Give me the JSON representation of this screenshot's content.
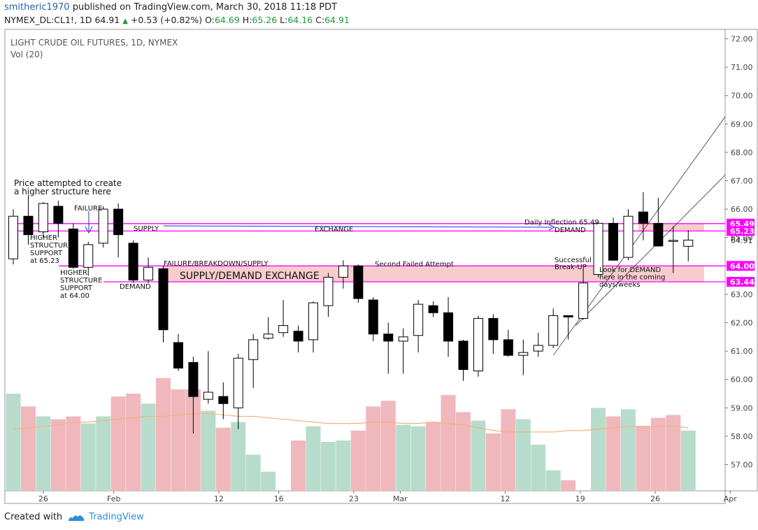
{
  "header": {
    "user": "smitheric1970",
    "published": "published on TradingView.com, March 30, 2018 11:18 PDT",
    "symbol": "NYMEX_DL:CL1!, 1D",
    "last": "64.91",
    "change": "+0.53 (+0.82%)",
    "o_label": "O:",
    "o": "64.69",
    "h_label": "H:",
    "h": "65.26",
    "l_label": "L:",
    "l": "64.16",
    "c_label": "C:",
    "c": "64.91"
  },
  "footer": {
    "created": "Created with",
    "brand": "TradingView"
  },
  "colors": {
    "up_fill": "#ffffff",
    "down_fill": "#000000",
    "vol_up": "#b8dccb",
    "vol_down": "#f0b8bc",
    "magenta": "#ff00ff",
    "zone": "#f6cccc",
    "ma": "#f2b27a",
    "trend": "#333333"
  },
  "chart_data": {
    "type": "candlestick",
    "title": "LIGHT CRUDE OIL FUTURES, 1D, NYMEX",
    "volume_label": "Vol (20)",
    "ylim": [
      56.0,
      72.2
    ],
    "y_ticks": [
      "72.00",
      "71.00",
      "70.00",
      "69.00",
      "68.00",
      "67.00",
      "66.00",
      "65.00",
      "64.00",
      "63.00",
      "62.00",
      "61.00",
      "60.00",
      "59.00",
      "58.00",
      "57.00"
    ],
    "x_ticks": [
      {
        "label": "26",
        "i": 2
      },
      {
        "label": "Feb",
        "i": 6.7
      },
      {
        "label": "12",
        "i": 13.7
      },
      {
        "label": "16",
        "i": 17.7
      },
      {
        "label": "23",
        "i": 22.7
      },
      {
        "label": "Mar",
        "i": 25.8
      },
      {
        "label": "12",
        "i": 32.8
      },
      {
        "label": "19",
        "i": 37.8
      },
      {
        "label": "26",
        "i": 42.8
      },
      {
        "label": "Apr",
        "i": 47.8
      }
    ],
    "candles": [
      {
        "d": "Jan 24",
        "o": 64.25,
        "h": 66.0,
        "l": 64.05,
        "c": 65.75
      },
      {
        "d": "Jan 25",
        "o": 65.75,
        "h": 66.5,
        "l": 64.75,
        "c": 65.1
      },
      {
        "d": "Jan 26",
        "o": 65.2,
        "h": 66.25,
        "l": 65.0,
        "c": 66.2
      },
      {
        "d": "Jan 29",
        "o": 66.1,
        "h": 66.3,
        "l": 65.0,
        "c": 65.5
      },
      {
        "d": "Jan 30",
        "o": 65.3,
        "h": 65.5,
        "l": 63.9,
        "c": 63.95
      },
      {
        "d": "Jan 31",
        "o": 63.95,
        "h": 64.85,
        "l": 63.65,
        "c": 64.75
      },
      {
        "d": "Feb 1",
        "o": 64.8,
        "h": 66.1,
        "l": 64.65,
        "c": 66.0
      },
      {
        "d": "Feb 2",
        "o": 66.0,
        "h": 66.2,
        "l": 64.3,
        "c": 65.1
      },
      {
        "d": "Feb 5",
        "o": 64.8,
        "h": 64.9,
        "l": 63.4,
        "c": 63.5
      },
      {
        "d": "Feb 6",
        "o": 63.5,
        "h": 64.3,
        "l": 63.4,
        "c": 63.95
      },
      {
        "d": "Feb 7",
        "o": 63.9,
        "h": 64.0,
        "l": 61.3,
        "c": 61.75
      },
      {
        "d": "Feb 8",
        "o": 61.3,
        "h": 61.6,
        "l": 60.3,
        "c": 60.4
      },
      {
        "d": "Feb 9",
        "o": 60.6,
        "h": 60.8,
        "l": 58.1,
        "c": 59.4
      },
      {
        "d": "Feb 12",
        "o": 59.3,
        "h": 61.0,
        "l": 59.15,
        "c": 59.55
      },
      {
        "d": "Feb 13",
        "o": 59.4,
        "h": 59.9,
        "l": 58.6,
        "c": 59.15
      },
      {
        "d": "Feb 14",
        "o": 59.0,
        "h": 60.9,
        "l": 58.25,
        "c": 60.75
      },
      {
        "d": "Feb 15",
        "o": 60.7,
        "h": 61.6,
        "l": 59.7,
        "c": 61.4
      },
      {
        "d": "Feb 16",
        "o": 61.45,
        "h": 62.2,
        "l": 61.4,
        "c": 61.6
      },
      {
        "d": "Feb 20",
        "o": 61.65,
        "h": 62.8,
        "l": 61.5,
        "c": 61.9
      },
      {
        "d": "Feb 21",
        "o": 61.7,
        "h": 61.9,
        "l": 60.95,
        "c": 61.35
      },
      {
        "d": "Feb 22",
        "o": 61.4,
        "h": 62.75,
        "l": 60.95,
        "c": 62.7
      },
      {
        "d": "Feb 23",
        "o": 62.6,
        "h": 63.75,
        "l": 62.2,
        "c": 63.6
      },
      {
        "d": "Feb 26",
        "o": 63.6,
        "h": 64.2,
        "l": 63.2,
        "c": 64.0
      },
      {
        "d": "Feb 27",
        "o": 64.0,
        "h": 64.05,
        "l": 62.7,
        "c": 62.85
      },
      {
        "d": "Feb 28",
        "o": 62.8,
        "h": 62.9,
        "l": 61.35,
        "c": 61.6
      },
      {
        "d": "Mar 1",
        "o": 61.6,
        "h": 62.0,
        "l": 60.2,
        "c": 61.35
      },
      {
        "d": "Mar 2",
        "o": 61.35,
        "h": 61.8,
        "l": 60.2,
        "c": 61.5
      },
      {
        "d": "Mar 5",
        "o": 61.55,
        "h": 62.8,
        "l": 60.95,
        "c": 62.65
      },
      {
        "d": "Mar 6",
        "o": 62.6,
        "h": 62.75,
        "l": 62.2,
        "c": 62.35
      },
      {
        "d": "Mar 7",
        "o": 62.35,
        "h": 62.9,
        "l": 60.8,
        "c": 61.35
      },
      {
        "d": "Mar 8",
        "o": 61.35,
        "h": 61.4,
        "l": 59.95,
        "c": 60.35
      },
      {
        "d": "Mar 9",
        "o": 60.3,
        "h": 62.25,
        "l": 60.1,
        "c": 62.15
      },
      {
        "d": "Mar 12",
        "o": 62.15,
        "h": 62.3,
        "l": 60.9,
        "c": 61.4
      },
      {
        "d": "Mar 13",
        "o": 61.4,
        "h": 61.75,
        "l": 60.8,
        "c": 60.85
      },
      {
        "d": "Mar 14",
        "o": 60.85,
        "h": 61.4,
        "l": 60.15,
        "c": 60.95
      },
      {
        "d": "Mar 15",
        "o": 61.0,
        "h": 61.65,
        "l": 60.8,
        "c": 61.2
      },
      {
        "d": "Mar 16",
        "o": 61.2,
        "h": 62.5,
        "l": 61.1,
        "c": 62.25
      },
      {
        "d": "Mar 19",
        "o": 62.25,
        "h": 62.25,
        "l": 61.4,
        "c": 62.2
      },
      {
        "d": "Mar 20",
        "o": 62.15,
        "h": 63.9,
        "l": 62.1,
        "c": 63.4
      },
      {
        "d": "Mar 21",
        "o": 63.7,
        "h": 65.6,
        "l": 63.6,
        "c": 65.5
      },
      {
        "d": "Mar 22",
        "o": 65.5,
        "h": 65.7,
        "l": 64.2,
        "c": 64.2
      },
      {
        "d": "Mar 23",
        "o": 64.3,
        "h": 66.0,
        "l": 64.2,
        "c": 65.75
      },
      {
        "d": "Mar 26",
        "o": 65.9,
        "h": 66.6,
        "l": 64.9,
        "c": 65.5
      },
      {
        "d": "Mar 27",
        "o": 65.5,
        "h": 66.4,
        "l": 64.7,
        "c": 64.7
      },
      {
        "d": "Mar 28",
        "o": 64.9,
        "h": 65.4,
        "l": 63.75,
        "c": 64.9
      },
      {
        "d": "Mar 29",
        "o": 64.69,
        "h": 65.26,
        "l": 64.16,
        "c": 64.91
      }
    ],
    "volume_rel": [
      {
        "v": 59.5,
        "up": true
      },
      {
        "v": 59.05,
        "up": false
      },
      {
        "v": 58.7,
        "up": true
      },
      {
        "v": 58.6,
        "up": false
      },
      {
        "v": 58.7,
        "up": false
      },
      {
        "v": 58.45,
        "up": true
      },
      {
        "v": 58.7,
        "up": true
      },
      {
        "v": 59.4,
        "up": false
      },
      {
        "v": 59.5,
        "up": false
      },
      {
        "v": 59.15,
        "up": true
      },
      {
        "v": 60.05,
        "up": false
      },
      {
        "v": 59.65,
        "up": false
      },
      {
        "v": 59.65,
        "up": false
      },
      {
        "v": 58.9,
        "up": true
      },
      {
        "v": 58.3,
        "up": false
      },
      {
        "v": 58.5,
        "up": true
      },
      {
        "v": 57.35,
        "up": true
      },
      {
        "v": 56.75,
        "up": true
      },
      {
        "v": 56.0,
        "up": true
      },
      {
        "v": 57.85,
        "up": false
      },
      {
        "v": 58.35,
        "up": true
      },
      {
        "v": 57.8,
        "up": true
      },
      {
        "v": 57.85,
        "up": true
      },
      {
        "v": 58.2,
        "up": false
      },
      {
        "v": 59.05,
        "up": false
      },
      {
        "v": 59.25,
        "up": false
      },
      {
        "v": 58.4,
        "up": true
      },
      {
        "v": 58.35,
        "up": true
      },
      {
        "v": 58.5,
        "up": false
      },
      {
        "v": 59.45,
        "up": false
      },
      {
        "v": 58.85,
        "up": false
      },
      {
        "v": 58.55,
        "up": true
      },
      {
        "v": 58.1,
        "up": false
      },
      {
        "v": 58.95,
        "up": false
      },
      {
        "v": 58.6,
        "up": true
      },
      {
        "v": 57.7,
        "up": true
      },
      {
        "v": 56.8,
        "up": true
      },
      {
        "v": 56.45,
        "up": false
      },
      {
        "v": 56.0,
        "up": true
      },
      {
        "v": 59.0,
        "up": true
      },
      {
        "v": 58.7,
        "up": false
      },
      {
        "v": 58.95,
        "up": true
      },
      {
        "v": 58.35,
        "up": false
      },
      {
        "v": 58.65,
        "up": false
      },
      {
        "v": 58.75,
        "up": false
      },
      {
        "v": 58.2,
        "up": true
      }
    ],
    "price_lines": [
      {
        "value": 65.49,
        "label": "65.49"
      },
      {
        "value": 65.23,
        "label": "65.23"
      },
      {
        "value": 64.0,
        "label": "64.00"
      },
      {
        "value": 63.44,
        "label": "63.44"
      }
    ],
    "current_price": {
      "value": 64.91,
      "label": "64.91"
    },
    "zone": {
      "top": 64.0,
      "bottom": 63.44,
      "label": "SUPPLY/DEMAND EXCHANGE"
    },
    "annotations": {
      "price_attempt": [
        "Price attempted to create",
        "a higher structure here"
      ],
      "failure": "FAILURE",
      "higher_struct_1": [
        "HIGHER",
        "STRUCTURE",
        "SUPPORT",
        "at 65.23"
      ],
      "higher_struct_2": [
        "HIGHER",
        "STRUCTURE",
        "SUPPORT",
        "at 64.00"
      ],
      "supply": "SUPPLY",
      "demand": "DEMAND",
      "exchange": "EXCHANGE",
      "failure_breakdown": "FAILURE/BREAKDOWN/SUPPLY",
      "second_failed": "Second Failed Attempt",
      "daily_inflection": "Daily Inflection 65.49",
      "demand2": "DEMAND",
      "successful": [
        "Successful",
        "Break-UP"
      ],
      "look_for": [
        "Look for DEMAND",
        "here in the coming",
        "days/weeks"
      ]
    }
  }
}
